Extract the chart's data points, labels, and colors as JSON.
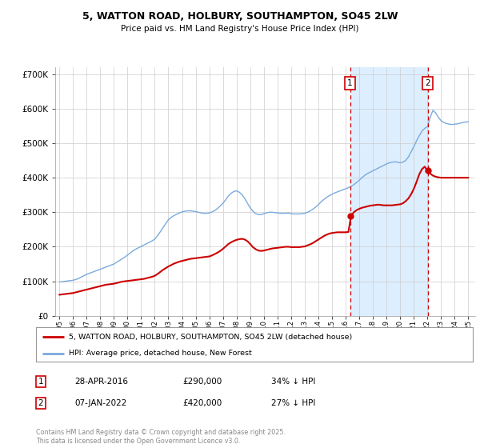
{
  "title": "5, WATTON ROAD, HOLBURY, SOUTHAMPTON, SO45 2LW",
  "subtitle": "Price paid vs. HM Land Registry's House Price Index (HPI)",
  "legend_entry1": "5, WATTON ROAD, HOLBURY, SOUTHAMPTON, SO45 2LW (detached house)",
  "legend_entry2": "HPI: Average price, detached house, New Forest",
  "marker1_date": "28-APR-2016",
  "marker1_price": 290000,
  "marker1_hpi_diff": "34% ↓ HPI",
  "marker2_date": "07-JAN-2022",
  "marker2_price": 420000,
  "marker2_hpi_diff": "27% ↓ HPI",
  "footer": "Contains HM Land Registry data © Crown copyright and database right 2025.\nThis data is licensed under the Open Government Licence v3.0.",
  "red_color": "#cc0000",
  "blue_color": "#7aaadd",
  "shade_color": "#ddeeff",
  "grid_color": "#cccccc",
  "bg_color": "#ffffff",
  "ylim": [
    0,
    720000
  ],
  "xlim_start": 1994.7,
  "xlim_end": 2025.5,
  "marker1_x": 2016.32,
  "marker2_x": 2022.02,
  "hpi_series_x": [
    1995.0,
    1995.1,
    1995.2,
    1995.3,
    1995.4,
    1995.5,
    1995.6,
    1995.7,
    1995.8,
    1995.9,
    1996.0,
    1996.1,
    1996.2,
    1996.3,
    1996.4,
    1996.5,
    1996.6,
    1996.7,
    1996.8,
    1996.9,
    1997.0,
    1997.2,
    1997.4,
    1997.6,
    1997.8,
    1998.0,
    1998.2,
    1998.4,
    1998.6,
    1998.8,
    1999.0,
    1999.2,
    1999.4,
    1999.6,
    1999.8,
    2000.0,
    2000.2,
    2000.4,
    2000.6,
    2000.8,
    2001.0,
    2001.2,
    2001.4,
    2001.6,
    2001.8,
    2002.0,
    2002.2,
    2002.4,
    2002.6,
    2002.8,
    2003.0,
    2003.2,
    2003.4,
    2003.6,
    2003.8,
    2004.0,
    2004.2,
    2004.4,
    2004.6,
    2004.8,
    2005.0,
    2005.2,
    2005.4,
    2005.6,
    2005.8,
    2006.0,
    2006.2,
    2006.4,
    2006.6,
    2006.8,
    2007.0,
    2007.2,
    2007.4,
    2007.6,
    2007.8,
    2008.0,
    2008.2,
    2008.4,
    2008.6,
    2008.8,
    2009.0,
    2009.2,
    2009.4,
    2009.6,
    2009.8,
    2010.0,
    2010.2,
    2010.4,
    2010.6,
    2010.8,
    2011.0,
    2011.2,
    2011.4,
    2011.6,
    2011.8,
    2012.0,
    2012.2,
    2012.4,
    2012.6,
    2012.8,
    2013.0,
    2013.2,
    2013.4,
    2013.6,
    2013.8,
    2014.0,
    2014.2,
    2014.4,
    2014.6,
    2014.8,
    2015.0,
    2015.2,
    2015.4,
    2015.6,
    2015.8,
    2016.0,
    2016.2,
    2016.4,
    2016.6,
    2016.8,
    2017.0,
    2017.2,
    2017.4,
    2017.6,
    2017.8,
    2018.0,
    2018.2,
    2018.4,
    2018.6,
    2018.8,
    2019.0,
    2019.2,
    2019.4,
    2019.6,
    2019.8,
    2020.0,
    2020.2,
    2020.4,
    2020.6,
    2020.8,
    2021.0,
    2021.2,
    2021.4,
    2021.6,
    2021.8,
    2022.0,
    2022.2,
    2022.4,
    2022.6,
    2022.8,
    2023.0,
    2023.2,
    2023.4,
    2023.6,
    2023.8,
    2024.0,
    2024.2,
    2024.4,
    2024.6,
    2024.8,
    2025.0
  ],
  "hpi_series_y": [
    98000,
    98500,
    99000,
    99500,
    100000,
    100500,
    101000,
    101500,
    102000,
    102500,
    103000,
    104000,
    105000,
    106500,
    108000,
    110000,
    112000,
    114000,
    116000,
    118000,
    120000,
    123000,
    126000,
    129000,
    132000,
    135000,
    138000,
    141000,
    144000,
    147000,
    150000,
    155000,
    160000,
    165000,
    170000,
    176000,
    182000,
    188000,
    193000,
    197000,
    201000,
    205000,
    209000,
    213000,
    217000,
    222000,
    232000,
    243000,
    255000,
    267000,
    278000,
    285000,
    290000,
    294000,
    298000,
    301000,
    303000,
    304000,
    304000,
    303000,
    302000,
    300000,
    298000,
    297000,
    297000,
    298000,
    301000,
    305000,
    311000,
    318000,
    326000,
    336000,
    347000,
    355000,
    360000,
    362000,
    358000,
    351000,
    340000,
    326000,
    313000,
    303000,
    296000,
    293000,
    293000,
    296000,
    298000,
    300000,
    300000,
    299000,
    298000,
    297000,
    297000,
    297000,
    298000,
    296000,
    295000,
    295000,
    295000,
    296000,
    297000,
    300000,
    304000,
    309000,
    315000,
    322000,
    330000,
    337000,
    343000,
    348000,
    352000,
    356000,
    359000,
    362000,
    365000,
    368000,
    371000,
    375000,
    380000,
    386000,
    393000,
    400000,
    407000,
    412000,
    416000,
    420000,
    424000,
    428000,
    432000,
    436000,
    440000,
    443000,
    445000,
    446000,
    445000,
    443000,
    445000,
    450000,
    460000,
    475000,
    490000,
    507000,
    522000,
    535000,
    543000,
    548000,
    575000,
    595000,
    588000,
    575000,
    565000,
    560000,
    557000,
    555000,
    554000,
    555000,
    556000,
    558000,
    560000,
    561000,
    562000
  ],
  "price_series_x": [
    1995.0,
    1995.1,
    1995.2,
    1995.3,
    1995.4,
    1995.5,
    1995.6,
    1995.7,
    1995.8,
    1995.9,
    1996.0,
    1996.2,
    1996.4,
    1996.6,
    1996.8,
    1997.0,
    1997.2,
    1997.4,
    1997.6,
    1997.8,
    1998.0,
    1998.2,
    1998.4,
    1998.6,
    1998.8,
    1999.0,
    1999.2,
    1999.4,
    1999.6,
    1999.8,
    2000.0,
    2000.2,
    2000.4,
    2000.6,
    2000.8,
    2001.0,
    2001.2,
    2001.4,
    2001.6,
    2001.8,
    2002.0,
    2002.2,
    2002.4,
    2002.6,
    2002.8,
    2003.0,
    2003.2,
    2003.4,
    2003.6,
    2003.8,
    2004.0,
    2004.2,
    2004.4,
    2004.6,
    2004.8,
    2005.0,
    2005.2,
    2005.4,
    2005.6,
    2005.8,
    2006.0,
    2006.2,
    2006.4,
    2006.6,
    2006.8,
    2007.0,
    2007.2,
    2007.4,
    2007.6,
    2007.8,
    2008.0,
    2008.2,
    2008.4,
    2008.6,
    2008.8,
    2009.0,
    2009.2,
    2009.4,
    2009.6,
    2009.8,
    2010.0,
    2010.2,
    2010.4,
    2010.6,
    2010.8,
    2011.0,
    2011.2,
    2011.4,
    2011.6,
    2011.8,
    2012.0,
    2012.2,
    2012.4,
    2012.6,
    2012.8,
    2013.0,
    2013.2,
    2013.4,
    2013.6,
    2013.8,
    2014.0,
    2014.2,
    2014.4,
    2014.6,
    2014.8,
    2015.0,
    2015.2,
    2015.4,
    2015.6,
    2015.8,
    2016.0,
    2016.2,
    2016.4,
    2016.6,
    2016.8,
    2017.0,
    2017.2,
    2017.4,
    2017.6,
    2017.8,
    2018.0,
    2018.2,
    2018.4,
    2018.6,
    2018.8,
    2019.0,
    2019.2,
    2019.4,
    2019.6,
    2019.8,
    2020.0,
    2020.2,
    2020.4,
    2020.6,
    2020.8,
    2021.0,
    2021.2,
    2021.4,
    2021.6,
    2021.8,
    2022.0,
    2022.2,
    2022.4,
    2022.6,
    2022.8,
    2023.0,
    2023.2,
    2023.4,
    2023.6,
    2023.8,
    2024.0,
    2024.2,
    2024.4,
    2024.6,
    2024.8,
    2025.0
  ],
  "price_series_y": [
    61000,
    61500,
    62000,
    62500,
    63000,
    63500,
    64000,
    64500,
    65000,
    65500,
    66000,
    68000,
    70000,
    72000,
    74000,
    76000,
    78000,
    80000,
    82000,
    84000,
    86000,
    88000,
    90000,
    91000,
    92000,
    93000,
    95000,
    97000,
    99000,
    100000,
    101000,
    102000,
    103000,
    104000,
    105000,
    106000,
    107000,
    109000,
    111000,
    113000,
    116000,
    121000,
    127000,
    133000,
    138000,
    143000,
    147000,
    151000,
    154000,
    157000,
    159000,
    161000,
    163000,
    165000,
    166000,
    167000,
    168000,
    169000,
    170000,
    171000,
    172000,
    175000,
    179000,
    183000,
    188000,
    194000,
    201000,
    208000,
    213000,
    217000,
    220000,
    222000,
    223000,
    221000,
    216000,
    208000,
    199000,
    193000,
    189000,
    188000,
    189000,
    191000,
    193000,
    195000,
    196000,
    197000,
    198000,
    199000,
    200000,
    200000,
    199000,
    199000,
    199000,
    199000,
    200000,
    201000,
    204000,
    207000,
    211000,
    216000,
    221000,
    226000,
    231000,
    235000,
    238000,
    240000,
    241000,
    242000,
    242000,
    242000,
    242000,
    243000,
    290000,
    300000,
    306000,
    310000,
    313000,
    315000,
    317000,
    319000,
    320000,
    321000,
    322000,
    321000,
    320000,
    320000,
    320000,
    320000,
    321000,
    322000,
    323000,
    326000,
    332000,
    340000,
    352000,
    368000,
    388000,
    410000,
    425000,
    432000,
    420000,
    412000,
    406000,
    403000,
    401000,
    400000,
    400000,
    400000,
    400000,
    400000,
    400000,
    400000,
    400000,
    400000,
    400000,
    400000
  ]
}
